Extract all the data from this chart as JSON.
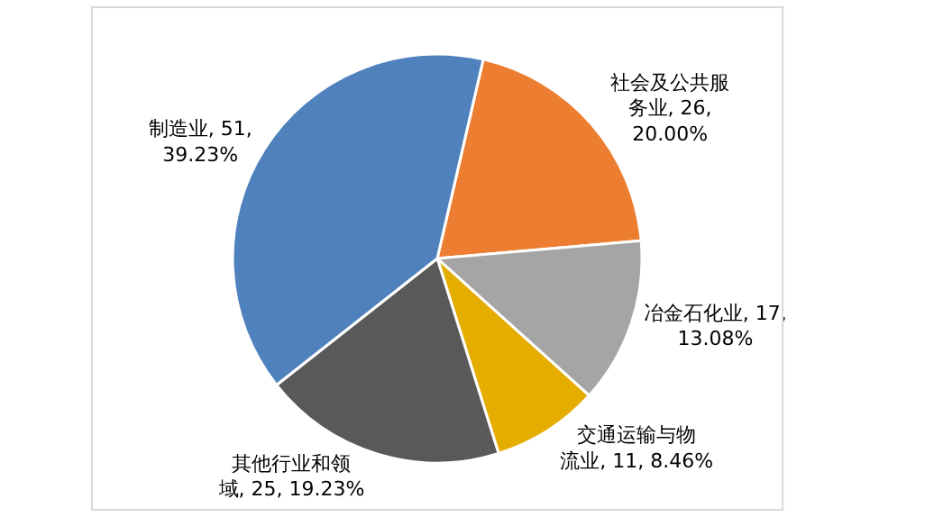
{
  "chart_data": {
    "type": "pie",
    "categories": [
      "社会及公共服务业",
      "冶金石化业",
      "交通运输与物流业",
      "其他行业和领域",
      "制造业"
    ],
    "values": [
      26,
      17,
      11,
      25,
      51
    ],
    "colors": [
      "#ed7d31",
      "#a5a5a5",
      "#e5ad00",
      "#595959",
      "#4f81bd"
    ],
    "value_labels": [
      "26, 20.00%",
      "17, 13.08%",
      "11, 8.46%",
      "25, 19.23%",
      "51, 39.23%"
    ],
    "legend": false
  }
}
